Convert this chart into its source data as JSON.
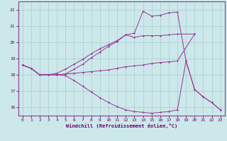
{
  "xlabel": "Windchill (Refroidissement éolien,°C)",
  "background_color": "#cce8ea",
  "grid_color": "#aacccc",
  "line_color": "#993399",
  "xlim": [
    -0.5,
    23.5
  ],
  "ylim": [
    15.5,
    22.5
  ],
  "yticks": [
    16,
    17,
    18,
    19,
    20,
    21,
    22
  ],
  "xticks": [
    0,
    1,
    2,
    3,
    4,
    5,
    6,
    7,
    8,
    9,
    10,
    11,
    12,
    13,
    14,
    15,
    16,
    17,
    18,
    19,
    20,
    21,
    22,
    23
  ],
  "line1_x": [
    0,
    1,
    2,
    3,
    4,
    5,
    6,
    7,
    8,
    9,
    10,
    11,
    12,
    13,
    14,
    15,
    16,
    17,
    18,
    20
  ],
  "line1_y": [
    18.6,
    18.4,
    18.0,
    18.0,
    18.0,
    18.05,
    18.1,
    18.15,
    18.2,
    18.25,
    18.3,
    18.4,
    18.5,
    18.55,
    18.6,
    18.7,
    18.75,
    18.8,
    18.85,
    20.5
  ],
  "line2_x": [
    0,
    1,
    2,
    3,
    4,
    5,
    6,
    7,
    8,
    9,
    10,
    11,
    12,
    13,
    14,
    15,
    16,
    17,
    18,
    20
  ],
  "line2_y": [
    18.6,
    18.4,
    18.0,
    18.0,
    18.1,
    18.35,
    18.65,
    18.95,
    19.3,
    19.6,
    19.85,
    20.1,
    20.45,
    20.3,
    20.4,
    20.4,
    20.4,
    20.45,
    20.5,
    20.5
  ],
  "line3_x": [
    0,
    1,
    2,
    3,
    4,
    5,
    6,
    7,
    8,
    9,
    10,
    11,
    12,
    13,
    14,
    15,
    16,
    17,
    18,
    19,
    20,
    21,
    22,
    23
  ],
  "line3_y": [
    18.6,
    18.4,
    18.0,
    18.0,
    18.0,
    18.05,
    18.35,
    18.65,
    19.05,
    19.4,
    19.75,
    20.05,
    20.45,
    20.55,
    21.9,
    21.6,
    21.65,
    21.8,
    21.85,
    18.85,
    17.1,
    16.65,
    16.3,
    15.85
  ],
  "line4_x": [
    0,
    1,
    2,
    3,
    4,
    5,
    6,
    7,
    8,
    9,
    10,
    11,
    12,
    13,
    14,
    15,
    16,
    17,
    18,
    19,
    20,
    21,
    22,
    23
  ],
  "line4_y": [
    18.6,
    18.4,
    18.0,
    18.0,
    18.0,
    17.95,
    17.65,
    17.3,
    16.95,
    16.6,
    16.3,
    16.05,
    15.85,
    15.75,
    15.7,
    15.65,
    15.7,
    15.75,
    15.85,
    18.85,
    17.1,
    16.65,
    16.3,
    15.85
  ]
}
